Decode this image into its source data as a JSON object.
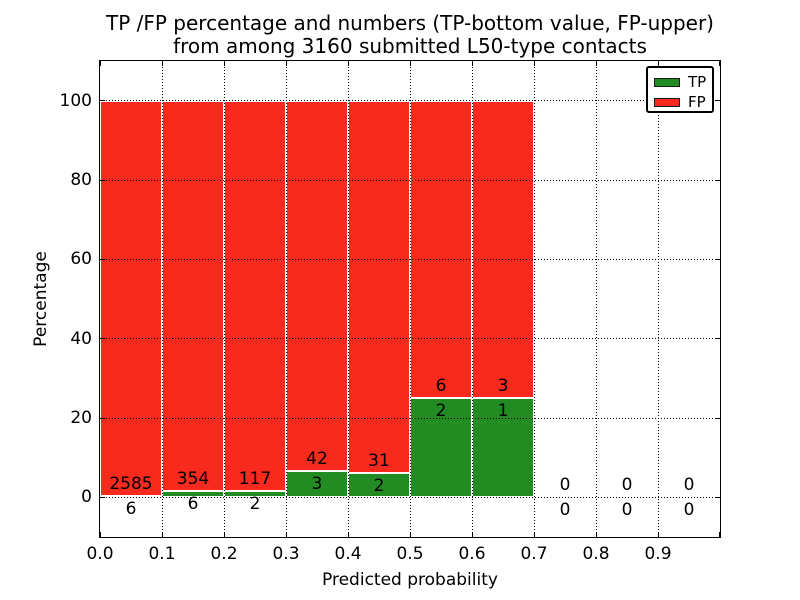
{
  "figure": {
    "title_line1": "TP /FP percentage and numbers (TP-bottom value, FP-upper)",
    "title_line2": "from among 3160 submitted L50-type contacts",
    "xlabel": "Predicted probability",
    "ylabel": "Percentage"
  },
  "legend": {
    "position": "upper right",
    "items": [
      {
        "label": "TP",
        "color": "#228b22"
      },
      {
        "label": "FP",
        "color": "#f8291d"
      }
    ]
  },
  "chart_data": {
    "type": "bar",
    "variant": "stacked-100-percent-histogram",
    "title": "TP /FP percentage and numbers (TP-bottom value, FP-upper) from among 3160 submitted L50-type contacts",
    "xlabel": "Predicted probability",
    "ylabel": "Percentage",
    "xlim": [
      0.0,
      1.0
    ],
    "ylim": [
      -10,
      110
    ],
    "xticks": [
      "0.0",
      "0.1",
      "0.2",
      "0.3",
      "0.4",
      "0.5",
      "0.6",
      "0.7",
      "0.8",
      "0.9"
    ],
    "yticks": [
      0,
      20,
      40,
      60,
      80,
      100
    ],
    "grid": {
      "style": "dotted",
      "color": "#000000",
      "axes": "both"
    },
    "bin_width": 0.1,
    "total_submitted_contacts": 3160,
    "series": [
      {
        "name": "TP",
        "color": "#228b22",
        "counts": [
          6,
          6,
          2,
          3,
          2,
          2,
          1,
          0,
          0,
          0
        ]
      },
      {
        "name": "FP",
        "color": "#f8291d",
        "counts": [
          2585,
          354,
          117,
          42,
          31,
          6,
          3,
          0,
          0,
          0
        ]
      }
    ],
    "bar_edge_color": "#ffffff",
    "note": "Bars show TP/FP percentage per predicted-probability bin; numeric labels show raw counts (FP above the TP/FP boundary, TP below it)."
  }
}
